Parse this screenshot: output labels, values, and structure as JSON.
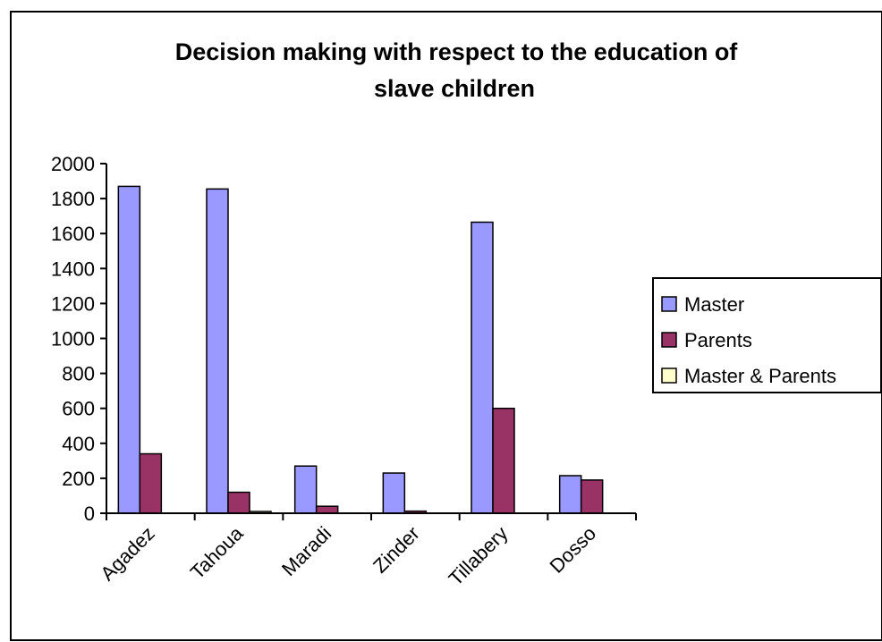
{
  "chart_data": {
    "type": "bar",
    "title": "Decision making with respect to the education of slave children",
    "title_lines": [
      "Decision making with respect to the education of",
      "slave children"
    ],
    "xlabel": "",
    "ylabel": "",
    "categories": [
      "Agadez",
      "Tahoua",
      "Maradi",
      "Zinder",
      "Tillabery",
      "Dosso"
    ],
    "y_ticks": [
      0,
      200,
      400,
      600,
      800,
      1000,
      1200,
      1400,
      1600,
      1800,
      2000
    ],
    "ylim": [
      0,
      2000
    ],
    "grid": false,
    "legend_position": "right",
    "series": [
      {
        "name": "Master",
        "color": "#9999ff",
        "values": [
          1870,
          1855,
          270,
          230,
          1665,
          215
        ]
      },
      {
        "name": "Parents",
        "color": "#993366",
        "values": [
          340,
          120,
          40,
          12,
          600,
          190
        ]
      },
      {
        "name": "Master & Parents",
        "color": "#ffffcc",
        "values": [
          0,
          10,
          0,
          0,
          0,
          0
        ]
      }
    ]
  }
}
